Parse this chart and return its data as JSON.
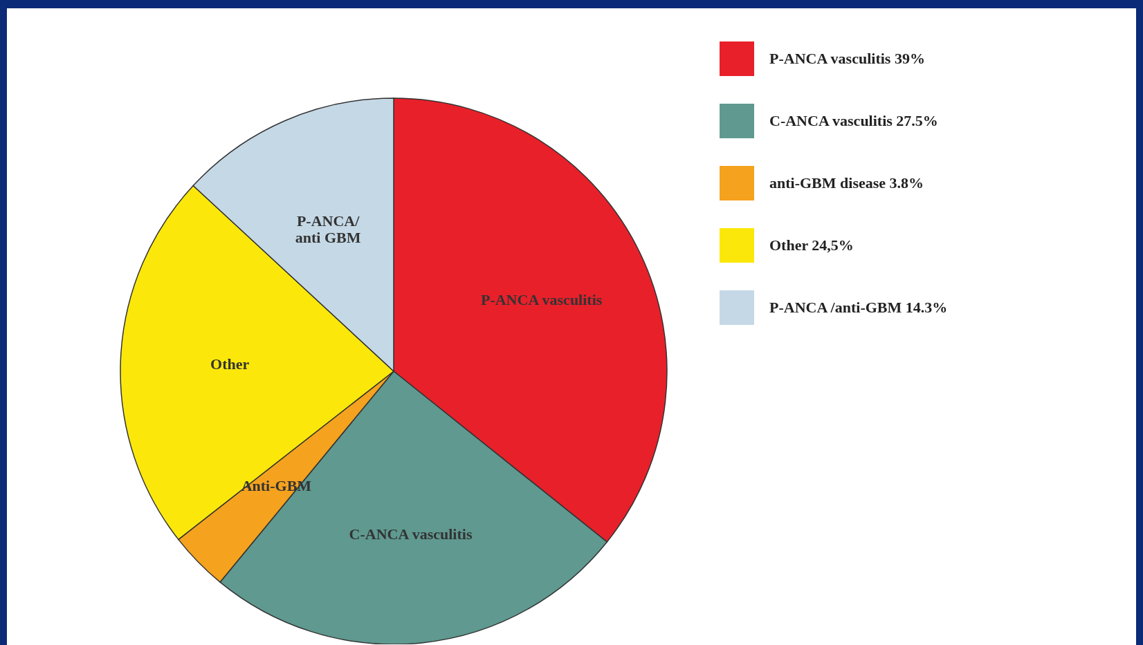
{
  "chart_data": {
    "type": "pie",
    "categories": [
      "P-ANCA vasculitis 39%",
      "C-ANCA vasculitis 27.5%",
      "anti-GBM disease 3.8%",
      "Other 24,5%",
      "P-ANCA /anti-GBM 14.3%"
    ],
    "values": [
      39,
      27.5,
      3.8,
      24.5,
      14.3
    ],
    "colors": [
      "#e8202a",
      "#5f9990",
      "#f5a21e",
      "#fbe80a",
      "#c5d8e6"
    ],
    "annotations": [
      "P-ANCA vasculitis",
      "C-ANCA vasculitis",
      "Anti-GBM",
      "Other",
      "P-ANCA/\nanti GBM"
    ],
    "legend": "top right"
  }
}
